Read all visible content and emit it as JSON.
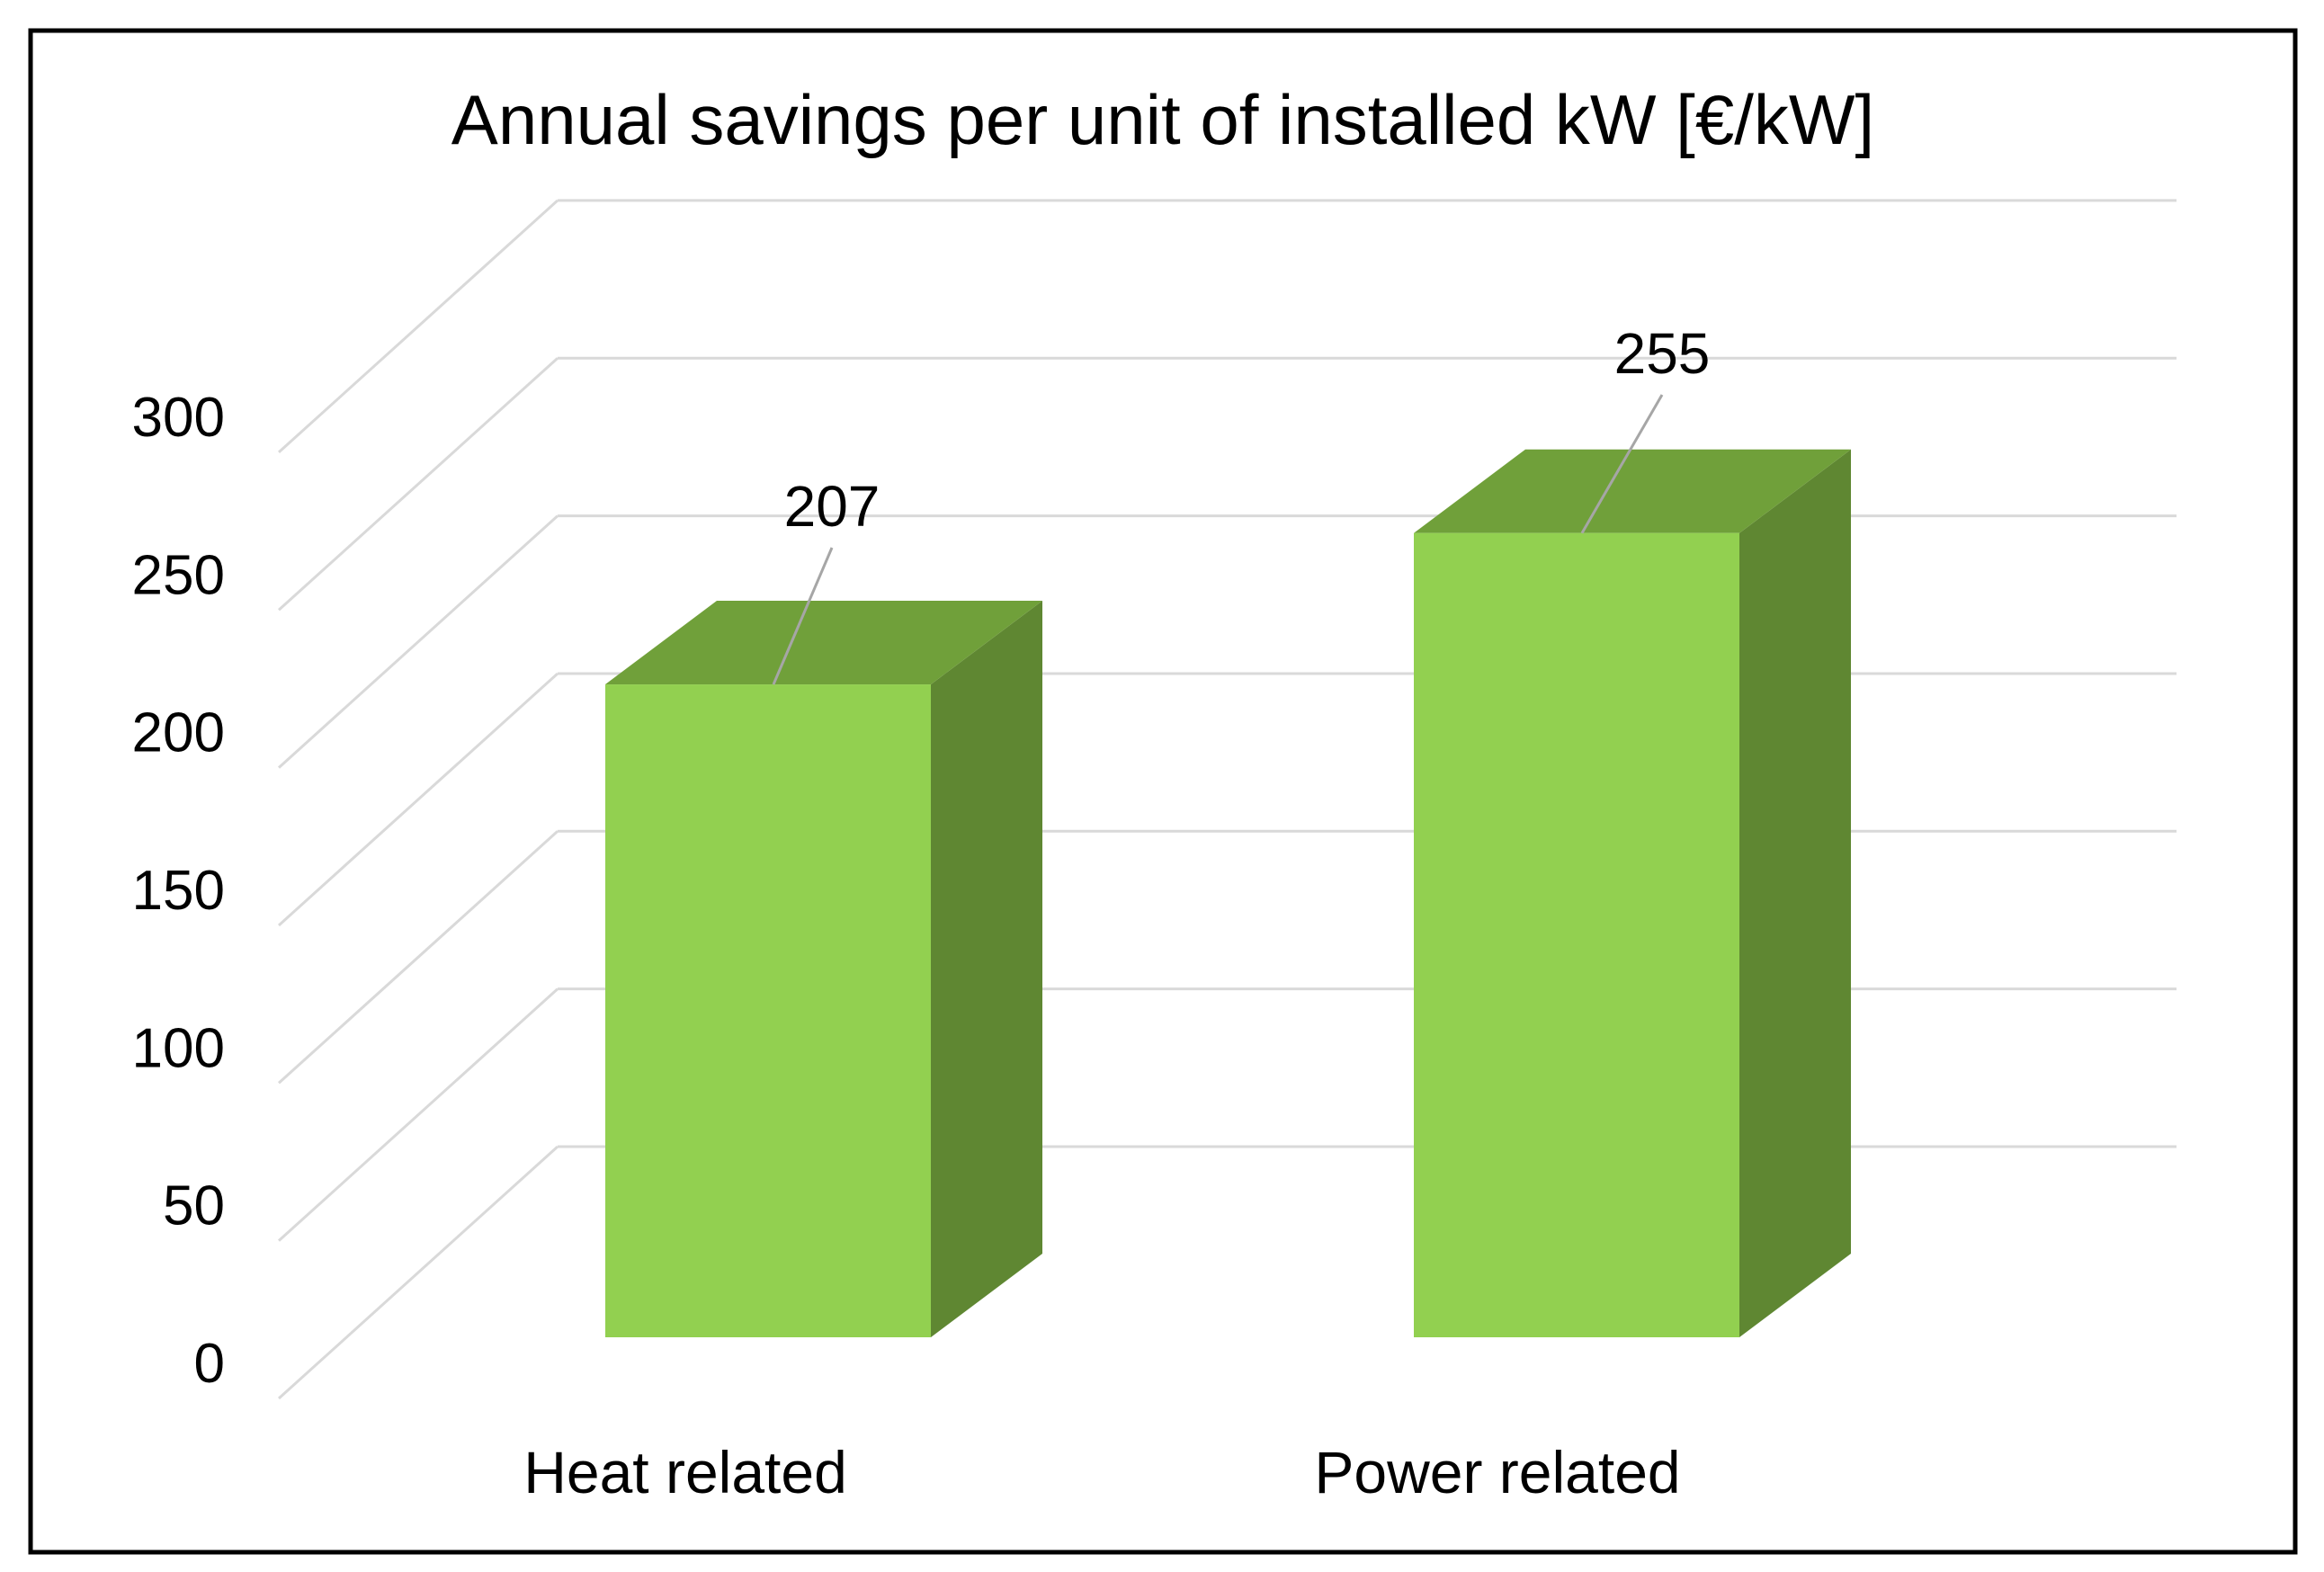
{
  "chart_data": {
    "type": "bar",
    "title": "Annual savings per unit of installed kW [€/kW]",
    "categories": [
      "Heat related",
      "Power related"
    ],
    "series": [
      {
        "values": [
          207,
          255
        ]
      }
    ],
    "ylim": [
      0,
      300
    ],
    "yticks": [
      0,
      50,
      100,
      150,
      200,
      250,
      300
    ],
    "xlabel": "",
    "ylabel": "",
    "grid": true,
    "legend": "none",
    "style": "3d-column",
    "colors": {
      "front": "#92D050",
      "top": "#70A03A",
      "side": "#5F8732",
      "grid": "#D9D9D9",
      "border": "#000000",
      "leader": "#A6A6A6"
    }
  }
}
